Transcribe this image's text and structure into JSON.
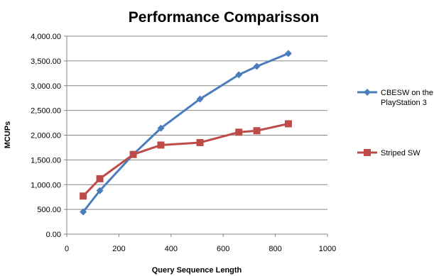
{
  "chart_data": {
    "type": "line",
    "title": "Performance Comparisson",
    "xlabel": "Query Sequence Length",
    "ylabel": "MCUPs",
    "xlim": [
      0,
      1000
    ],
    "ylim": [
      0,
      4000
    ],
    "x_ticks": [
      "0",
      "200",
      "400",
      "600",
      "800",
      "1000"
    ],
    "y_ticks": [
      "0.00",
      "500.00",
      "1,000.00",
      "1,500.00",
      "2,000.00",
      "2,500.00",
      "3,000.00",
      "3,500.00",
      "4,000.00"
    ],
    "grid": "horizontal",
    "legend_position": "right",
    "series": [
      {
        "name": "CBESW on the PlayStation 3",
        "legend_lines": [
          "CBESW on the",
          "PlayStation 3"
        ],
        "color": "#4A7EBB",
        "marker": "diamond",
        "x": [
          63,
          127,
          255,
          361,
          511,
          660,
          729,
          850
        ],
        "y": [
          450,
          880,
          1610,
          2140,
          2730,
          3220,
          3390,
          3650
        ]
      },
      {
        "name": "Striped SW",
        "legend_lines": [
          "Striped SW"
        ],
        "color": "#BE4B48",
        "marker": "square",
        "x": [
          63,
          127,
          255,
          361,
          511,
          660,
          729,
          850
        ],
        "y": [
          770,
          1120,
          1610,
          1800,
          1850,
          2060,
          2090,
          2230
        ]
      }
    ]
  }
}
